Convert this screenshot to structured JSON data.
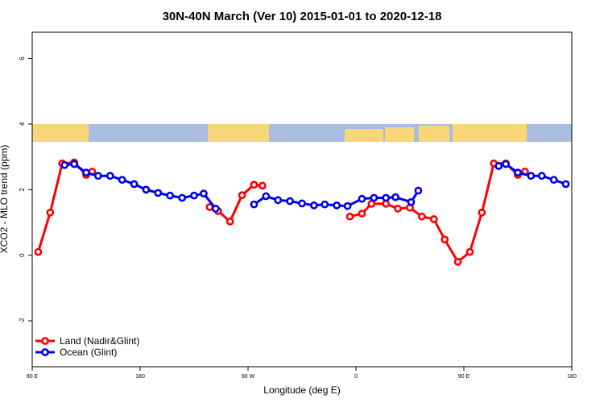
{
  "chart_data": {
    "type": "line",
    "title": "30N-40N March (Ver 10)   2015-01-01 to 2020-12-18",
    "x_label": "Longitude (deg E)",
    "y_label": "XCO2 - MLO trend (ppm)",
    "xlim": [
      90,
      540
    ],
    "xticks": [
      {
        "value": 90,
        "label": "90 E"
      },
      {
        "value": 180,
        "label": "180"
      },
      {
        "value": 270,
        "label": "90 W"
      },
      {
        "value": 360,
        "label": "0"
      },
      {
        "value": 450,
        "label": "90 E"
      },
      {
        "value": 540,
        "label": "180"
      }
    ],
    "ylim": [
      -3.4,
      6.8
    ],
    "yticks": [
      -2,
      0,
      2,
      4,
      6
    ],
    "legend": "bottomleft",
    "series": [
      {
        "name": "Land (Nadir&Glint)",
        "color": "#ff0000",
        "x": [
          95,
          105,
          115,
          125,
          135,
          140,
          null,
          238,
          245,
          255,
          265,
          275,
          282,
          null,
          355,
          365,
          373,
          385,
          395,
          405,
          415,
          425,
          434,
          445,
          455,
          465,
          475,
          485,
          495,
          501
        ],
        "values": [
          0.1,
          1.3,
          2.8,
          2.83,
          2.45,
          2.55,
          null,
          1.47,
          1.35,
          1.03,
          1.83,
          2.15,
          2.12,
          null,
          1.18,
          1.27,
          1.57,
          1.57,
          1.42,
          1.45,
          1.18,
          1.1,
          0.48,
          -0.2,
          0.1,
          1.3,
          2.8,
          2.8,
          2.45,
          2.55
        ]
      },
      {
        "name": "Ocean (Glint)",
        "color": "#0000ee",
        "x": [
          117,
          125,
          135,
          145,
          155,
          165,
          175,
          185,
          195,
          205,
          215,
          225,
          233,
          243,
          null,
          275,
          285,
          295,
          305,
          315,
          325,
          334,
          344,
          353,
          365,
          375,
          385,
          393,
          406,
          412,
          null,
          479,
          485,
          495,
          506,
          515,
          525,
          535
        ],
        "values": [
          2.75,
          2.78,
          2.52,
          2.42,
          2.42,
          2.3,
          2.17,
          2.0,
          1.9,
          1.82,
          1.75,
          1.82,
          1.88,
          1.42,
          null,
          1.55,
          1.8,
          1.68,
          1.65,
          1.58,
          1.52,
          1.55,
          1.52,
          1.5,
          1.72,
          1.75,
          1.75,
          1.77,
          1.62,
          1.97,
          null,
          2.72,
          2.78,
          2.52,
          2.42,
          2.42,
          2.3,
          2.17
        ]
      }
    ]
  }
}
